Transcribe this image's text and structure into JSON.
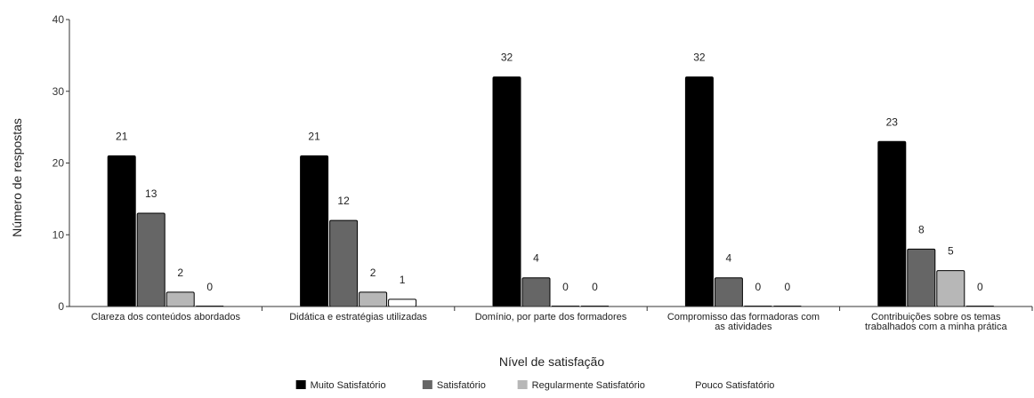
{
  "chart_data": {
    "type": "bar",
    "title": "",
    "xlabel": "Nível de satisfação",
    "ylabel": "Número de respostas",
    "ylim": [
      0,
      40
    ],
    "yticks": [
      0,
      10,
      20,
      30,
      40
    ],
    "grid": false,
    "legend_position": "bottom",
    "categories": [
      [
        "Clareza dos conteúdos abordados"
      ],
      [
        "Didática e estratégias utilizadas"
      ],
      [
        "Domínio, por parte dos formadores"
      ],
      [
        "Compromisso das formadoras com",
        "as atividades"
      ],
      [
        "Contribuições sobre os temas",
        "trabalhados com a minha prática"
      ]
    ],
    "series": [
      {
        "name": "Muito Satisfatório",
        "color": "#000000",
        "values": [
          21,
          21,
          32,
          32,
          23
        ]
      },
      {
        "name": "Satisfatório",
        "color": "#666666",
        "values": [
          13,
          12,
          4,
          4,
          8
        ]
      },
      {
        "name": "Regularmente Satisfatório",
        "color": "#b7b7b7",
        "values": [
          2,
          2,
          0,
          0,
          5
        ]
      },
      {
        "name": "Pouco Satisfatório",
        "color": "#ffffff",
        "values": [
          0,
          1,
          0,
          0,
          0
        ]
      }
    ]
  }
}
